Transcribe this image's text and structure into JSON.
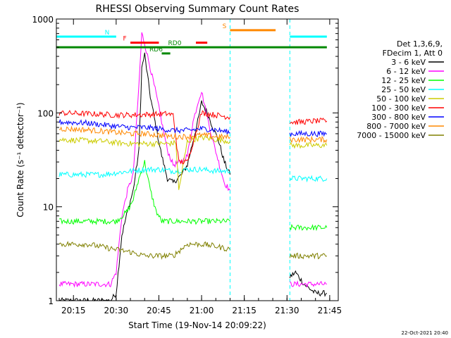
{
  "chart_data": {
    "type": "line",
    "title": "RHESSI Observing Summary Count Rates",
    "xlabel": "Start Time (19-Nov-14 20:09:22)",
    "ylabel": "Count Rate (s⁻¹ detector⁻¹)",
    "y_scale": "log",
    "xlim": [
      "20:09",
      "21:48"
    ],
    "ylim": [
      1,
      1000
    ],
    "x_ticks": [
      "20:15",
      "20:30",
      "20:45",
      "21:00",
      "21:15",
      "21:30",
      "21:45"
    ],
    "y_ticks": [
      "1",
      "10",
      "100",
      "1000"
    ],
    "legend_header": [
      "Det 1,3,6,9,",
      "FDecim 1, Att 0"
    ],
    "legend_position": "right",
    "footer": "22-Oct-2021 20:40",
    "data_gap": [
      "21:10",
      "21:31"
    ],
    "series": [
      {
        "name": "3 - 6 keV",
        "color": "#000000",
        "x": [
          "20:10",
          "20:25",
          "20:28",
          "20:30",
          "20:32",
          "20:34",
          "20:36",
          "20:38",
          "20:39",
          "20:40",
          "20:42",
          "20:44",
          "20:46",
          "20:48",
          "20:50",
          "20:53",
          "20:55",
          "20:57",
          "20:59",
          "21:00",
          "21:02",
          "21:04",
          "21:06",
          "21:08",
          "21:10",
          "21:31",
          "21:33",
          "21:36",
          "21:40",
          "21:44"
        ],
        "y": [
          1,
          1,
          1,
          1.2,
          5,
          9,
          15,
          40,
          300,
          420,
          150,
          70,
          35,
          20,
          18,
          22,
          28,
          50,
          90,
          130,
          100,
          70,
          50,
          30,
          22,
          1.8,
          2,
          1.5,
          1.2,
          1.2
        ]
      },
      {
        "name": "6 - 12 keV",
        "color": "#ff00ff",
        "x": [
          "20:10",
          "20:25",
          "20:28",
          "20:30",
          "20:32",
          "20:34",
          "20:36",
          "20:38",
          "20:39",
          "20:40",
          "20:42",
          "20:44",
          "20:46",
          "20:48",
          "20:50",
          "20:53",
          "20:55",
          "20:57",
          "20:59",
          "21:00",
          "21:02",
          "21:04",
          "21:06",
          "21:08",
          "21:10",
          "21:31",
          "21:33",
          "21:36",
          "21:40",
          "21:44"
        ],
        "y": [
          1.5,
          1.5,
          1.5,
          2,
          8,
          15,
          22,
          200,
          700,
          550,
          300,
          160,
          80,
          40,
          28,
          30,
          35,
          80,
          140,
          170,
          90,
          50,
          30,
          18,
          15,
          1.5,
          1.5,
          1.5,
          1.5,
          1.5
        ]
      },
      {
        "name": "12 - 25 keV",
        "color": "#00ff00",
        "x": [
          "20:10",
          "20:25",
          "20:30",
          "20:34",
          "20:36",
          "20:38",
          "20:40",
          "20:42",
          "20:44",
          "20:46",
          "20:50",
          "20:55",
          "21:00",
          "21:05",
          "21:10",
          "21:31",
          "21:35",
          "21:40",
          "21:44"
        ],
        "y": [
          7,
          7,
          7,
          9,
          12,
          20,
          30,
          15,
          9,
          7,
          7,
          7,
          7,
          7,
          7,
          6,
          6,
          6,
          6
        ]
      },
      {
        "name": "25 - 50 keV",
        "color": "#00ffff",
        "x": [
          "20:10",
          "20:25",
          "20:30",
          "20:35",
          "20:40",
          "20:45",
          "20:50",
          "20:55",
          "21:00",
          "21:05",
          "21:10",
          "21:31",
          "21:35",
          "21:40",
          "21:44"
        ],
        "y": [
          22,
          22,
          23,
          24,
          25,
          25,
          24,
          25,
          25,
          24,
          24,
          20,
          20,
          20,
          20
        ]
      },
      {
        "name": "50 - 100 keV",
        "color": "#cccc00",
        "x": [
          "20:10",
          "20:25",
          "20:30",
          "20:35",
          "20:40",
          "20:45",
          "20:48",
          "20:51",
          "20:52",
          "20:55",
          "21:00",
          "21:05",
          "21:10",
          "21:31",
          "21:35",
          "21:40",
          "21:44"
        ],
        "y": [
          52,
          50,
          48,
          47,
          47,
          47,
          47,
          48,
          15,
          50,
          55,
          52,
          50,
          45,
          45,
          45,
          45
        ]
      },
      {
        "name": "100 - 300 keV",
        "color": "#ff0000",
        "x": [
          "20:10",
          "20:20",
          "20:30",
          "20:35",
          "20:40",
          "20:45",
          "20:48",
          "20:50",
          "20:52",
          "20:55",
          "21:00",
          "21:05",
          "21:10",
          "21:31",
          "21:35",
          "21:40",
          "21:44"
        ],
        "y": [
          100,
          98,
          95,
          95,
          96,
          97,
          98,
          95,
          30,
          30,
          100,
          95,
          90,
          80,
          80,
          82,
          82
        ]
      },
      {
        "name": "300 - 800 keV",
        "color": "#0000ff",
        "x": [
          "20:10",
          "20:20",
          "20:30",
          "20:35",
          "20:40",
          "20:45",
          "20:50",
          "20:55",
          "21:00",
          "21:05",
          "21:10",
          "21:31",
          "21:35",
          "21:40",
          "21:44"
        ],
        "y": [
          80,
          78,
          72,
          70,
          70,
          68,
          65,
          65,
          68,
          66,
          62,
          60,
          60,
          60,
          60
        ]
      },
      {
        "name": "800 - 7000 keV",
        "color": "#ff8800",
        "x": [
          "20:10",
          "20:20",
          "20:30",
          "20:35",
          "20:40",
          "20:45",
          "20:50",
          "20:55",
          "21:00",
          "21:05",
          "21:10",
          "21:31",
          "21:35",
          "21:40",
          "21:44"
        ],
        "y": [
          68,
          66,
          62,
          60,
          60,
          58,
          56,
          56,
          58,
          56,
          55,
          52,
          52,
          52,
          52
        ]
      },
      {
        "name": "7000 - 15000 keV",
        "color": "#808000",
        "x": [
          "20:10",
          "20:20",
          "20:30",
          "20:35",
          "20:40",
          "20:45",
          "20:50",
          "20:55",
          "21:00",
          "21:05",
          "21:10",
          "21:31",
          "21:35",
          "21:40",
          "21:44"
        ],
        "y": [
          4,
          4,
          3.5,
          3.3,
          3,
          3,
          3,
          4,
          4,
          3.8,
          3.5,
          3,
          3,
          3,
          3
        ]
      }
    ],
    "state_bars": [
      {
        "label": "N",
        "color": "#00ffff",
        "level": 650,
        "segments": [
          [
            "20:09",
            "20:30"
          ],
          [
            "21:31",
            "21:44"
          ]
        ]
      },
      {
        "label": "F",
        "color": "#ff0000",
        "level": 560,
        "segments": [
          [
            "20:35",
            "20:45"
          ],
          [
            "20:58",
            "21:02"
          ]
        ]
      },
      {
        "label": "S",
        "color": "#ff8800",
        "level": 760,
        "segments": [
          [
            "21:10",
            "21:26"
          ]
        ]
      },
      {
        "label": "RD6",
        "color": "#008800",
        "level": 430,
        "segments": [
          [
            "20:46",
            "20:49"
          ]
        ]
      },
      {
        "label": "RD0",
        "color": "#008800",
        "level": 500,
        "segments": [
          [
            "20:09",
            "21:44"
          ]
        ]
      }
    ]
  }
}
